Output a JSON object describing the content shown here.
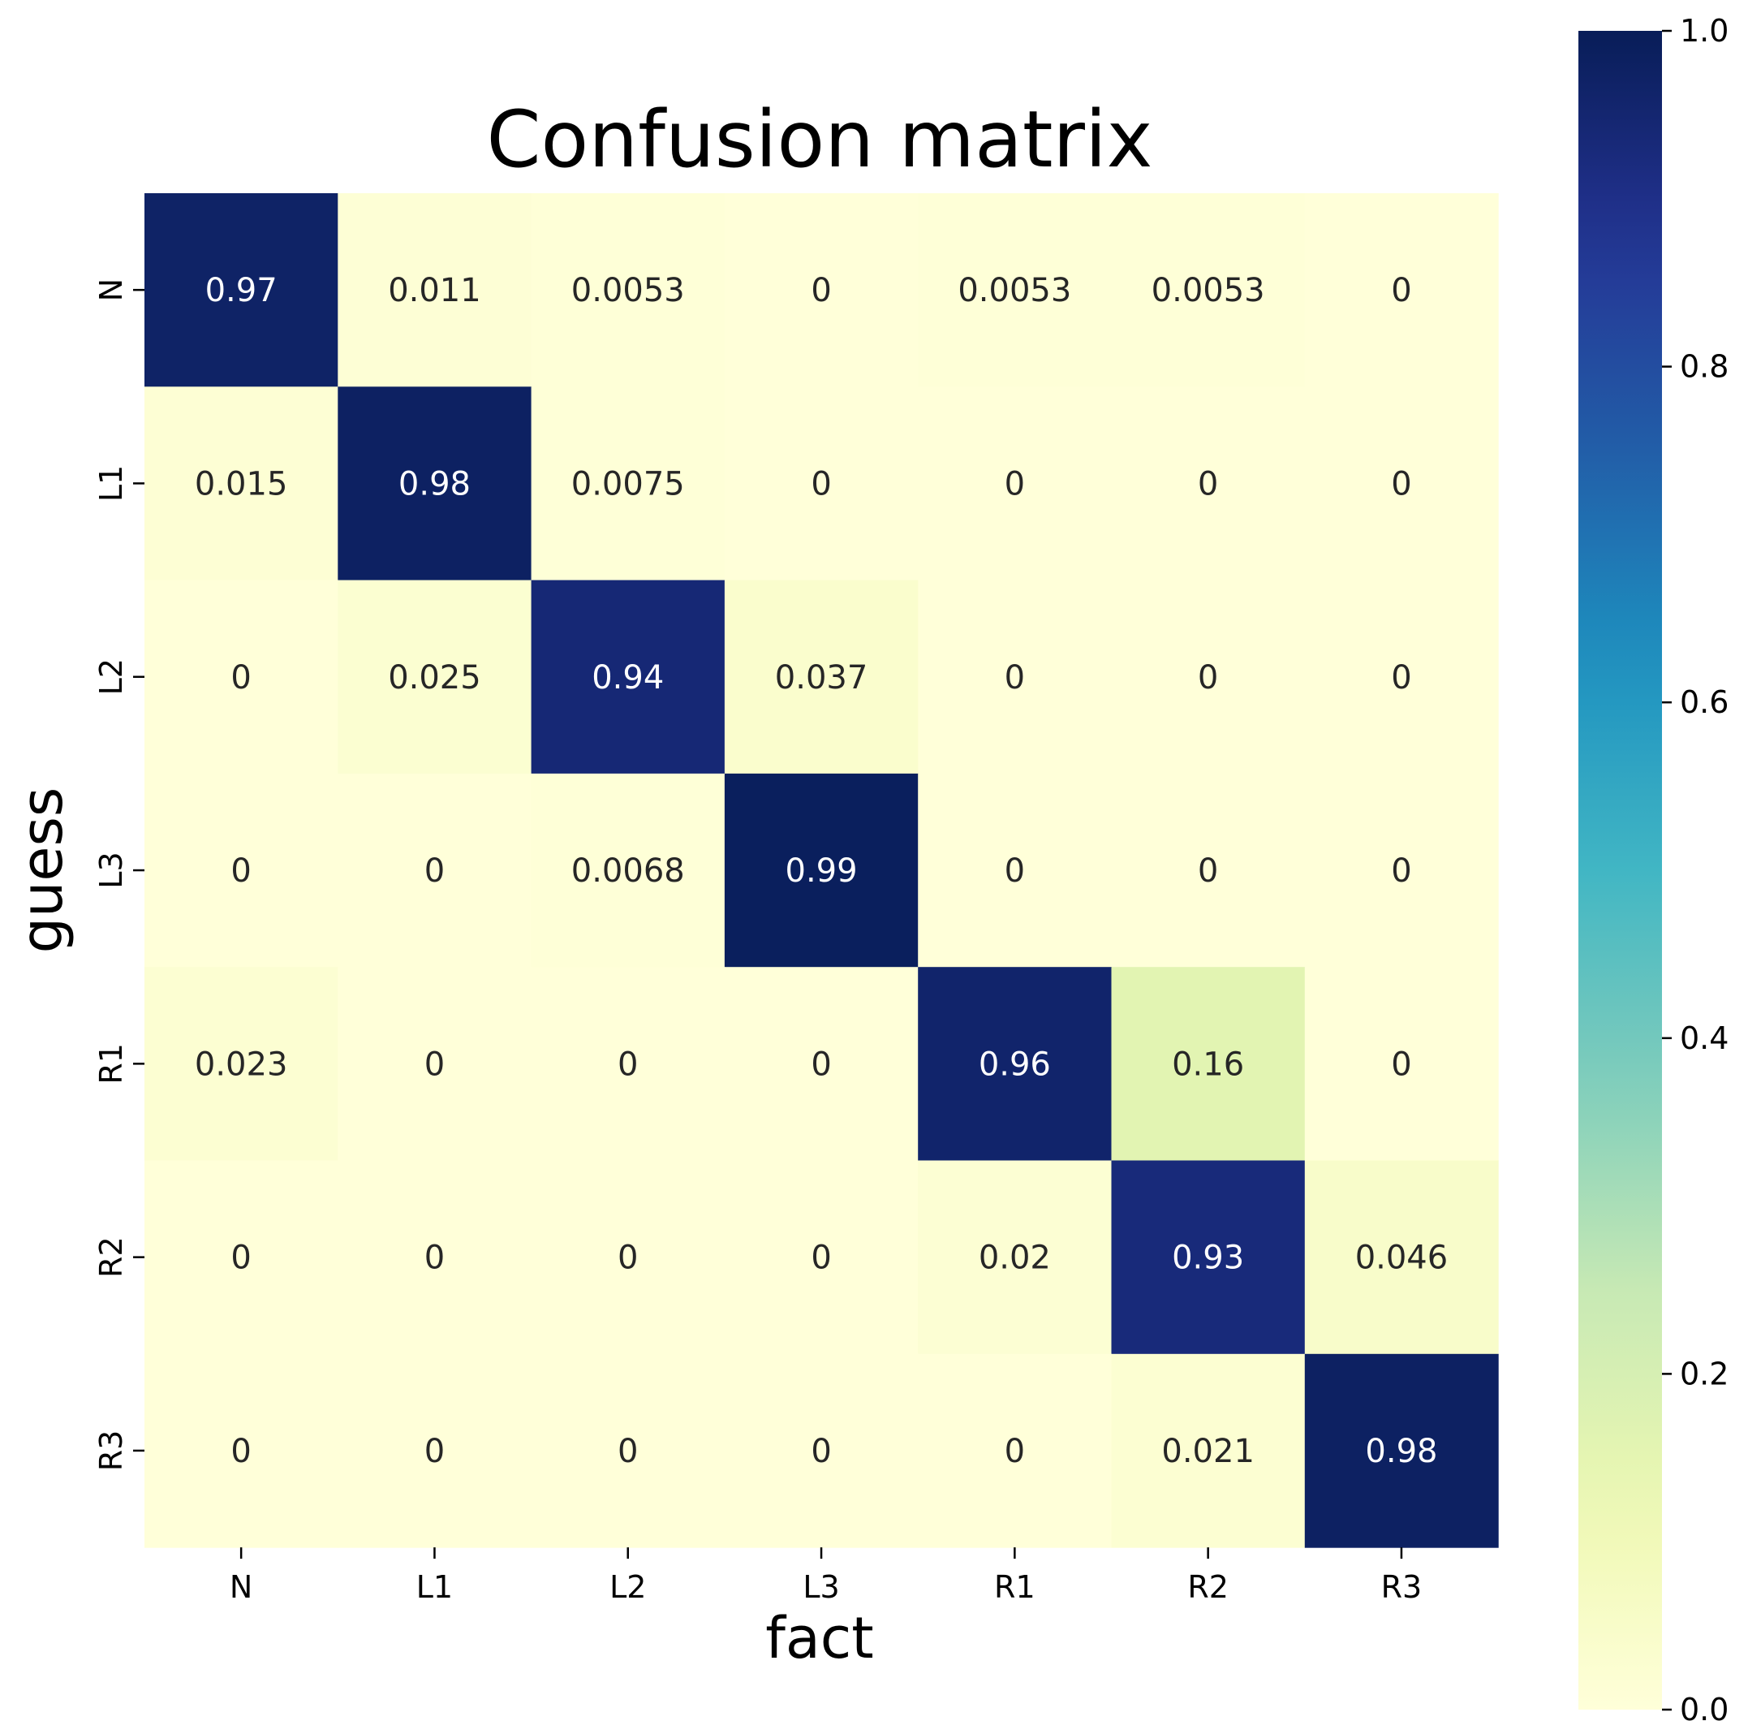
{
  "chart_data": {
    "type": "heatmap",
    "title": "Confusion matrix",
    "xlabel": "fact",
    "ylabel": "guess",
    "x_categories": [
      "N",
      "L1",
      "L2",
      "L3",
      "R1",
      "R2",
      "R3"
    ],
    "y_categories": [
      "N",
      "L1",
      "L2",
      "L3",
      "R1",
      "R2",
      "R3"
    ],
    "values": [
      [
        0.97,
        0.011,
        0.0053,
        0,
        0.0053,
        0.0053,
        0
      ],
      [
        0.015,
        0.98,
        0.0075,
        0,
        0,
        0,
        0
      ],
      [
        0,
        0.025,
        0.94,
        0.037,
        0,
        0,
        0
      ],
      [
        0,
        0,
        0.0068,
        0.99,
        0,
        0,
        0
      ],
      [
        0.023,
        0,
        0,
        0,
        0.96,
        0.16,
        0
      ],
      [
        0,
        0,
        0,
        0,
        0.02,
        0.93,
        0.046
      ],
      [
        0,
        0,
        0,
        0,
        0,
        0.021,
        0.98
      ]
    ],
    "labels": [
      [
        "0.97",
        "0.011",
        "0.0053",
        "0",
        "0.0053",
        "0.0053",
        "0"
      ],
      [
        "0.015",
        "0.98",
        "0.0075",
        "0",
        "0",
        "0",
        "0"
      ],
      [
        "0",
        "0.025",
        "0.94",
        "0.037",
        "0",
        "0",
        "0"
      ],
      [
        "0",
        "0",
        "0.0068",
        "0.99",
        "0",
        "0",
        "0"
      ],
      [
        "0.023",
        "0",
        "0",
        "0",
        "0.96",
        "0.16",
        "0"
      ],
      [
        "0",
        "0",
        "0",
        "0",
        "0.02",
        "0.93",
        "0.046"
      ],
      [
        "0",
        "0",
        "0",
        "0",
        "0",
        "0.021",
        "0.98"
      ]
    ],
    "colormap": "YlGnBu",
    "vmin": 0,
    "vmax": 1,
    "colorbar_ticks": [
      "0.0",
      "0.2",
      "0.4",
      "0.6",
      "0.8",
      "1.0"
    ],
    "colorbar_tick_values": [
      0,
      0.2,
      0.4,
      0.6,
      0.8,
      1.0
    ]
  }
}
